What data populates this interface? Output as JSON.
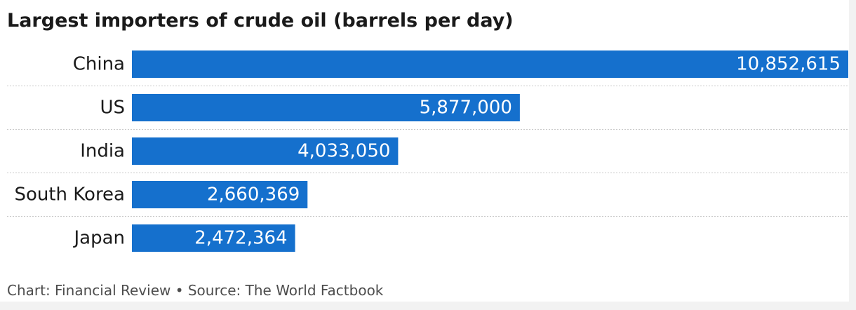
{
  "title": "Largest importers of crude oil (barrels per day)",
  "footer": "Chart: Financial Review • Source: The World Factbook",
  "colors": {
    "bar": "#1570cd",
    "bar_label": "#ffffff",
    "category_label": "#1a1a1a",
    "separator": "#c8c8c8"
  },
  "chart_data": {
    "type": "bar",
    "orientation": "horizontal",
    "categories": [
      "China",
      "US",
      "India",
      "South Korea",
      "Japan"
    ],
    "values": [
      10852615,
      5877000,
      4033050,
      2660369,
      2472364
    ],
    "value_labels": [
      "10,852,615",
      "5,877,000",
      "4,033,050",
      "2,660,369",
      "2,472,364"
    ],
    "xlim": [
      0,
      10852615
    ],
    "grid": false,
    "legend": "none"
  }
}
